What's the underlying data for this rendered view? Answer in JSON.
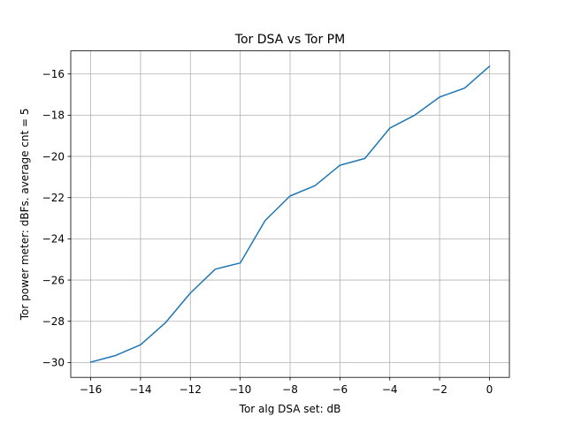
{
  "chart_data": {
    "type": "line",
    "title": "Tor DSA vs Tor PM",
    "xlabel": "Tor alg DSA set: dB",
    "ylabel": "Tor power meter: dBFs. average cnt = 5",
    "xlim": [
      -16.8,
      0.8
    ],
    "ylim": [
      -30.72,
      -14.88
    ],
    "xticks": [
      -16,
      -14,
      -12,
      -10,
      -8,
      -6,
      -4,
      -2,
      0
    ],
    "xtick_labels": [
      "−16",
      "−14",
      "−12",
      "−10",
      "−8",
      "−6",
      "−4",
      "−2",
      "0"
    ],
    "yticks": [
      -30,
      -28,
      -26,
      -24,
      -22,
      -20,
      -18,
      -16
    ],
    "ytick_labels": [
      "−30",
      "−28",
      "−26",
      "−24",
      "−22",
      "−20",
      "−18",
      "−16"
    ],
    "grid": true,
    "series": [
      {
        "name": "Tor PM",
        "color": "#1f77b4",
        "x": [
          -16,
          -15,
          -14,
          -13,
          -12,
          -11,
          -10,
          -9,
          -8,
          -7,
          -6,
          -5,
          -4,
          -3,
          -2,
          -1,
          0
        ],
        "y": [
          -29.98,
          -29.66,
          -29.14,
          -28.07,
          -26.63,
          -25.47,
          -25.17,
          -23.11,
          -21.92,
          -21.42,
          -20.43,
          -20.1,
          -18.63,
          -18.0,
          -17.12,
          -16.69,
          -15.63
        ]
      }
    ]
  }
}
